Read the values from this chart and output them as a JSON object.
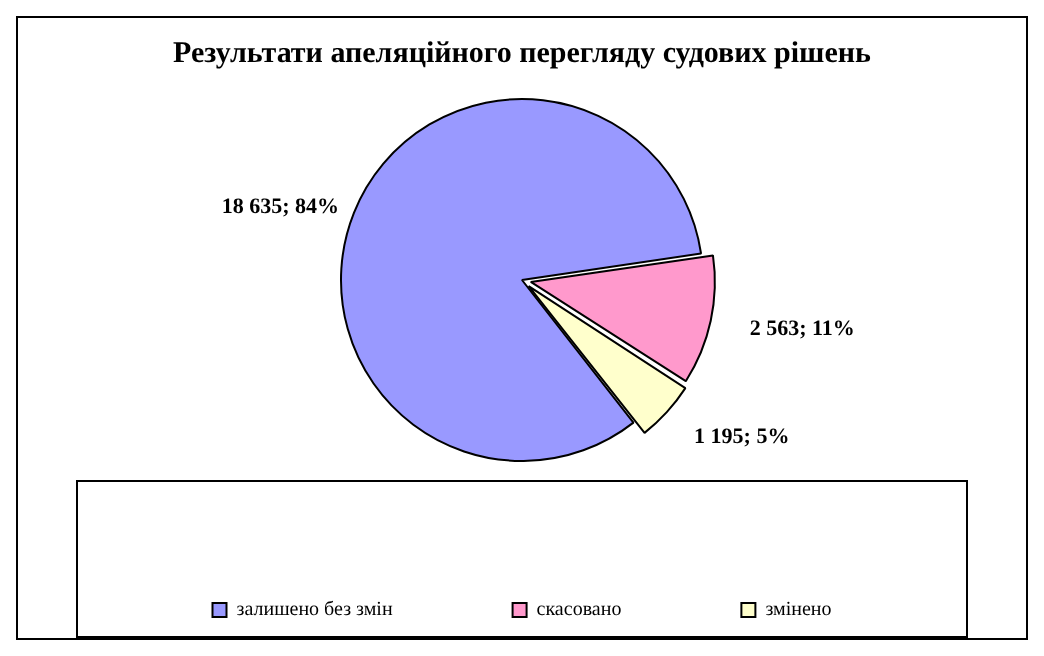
{
  "chart_data": {
    "type": "pie",
    "title": "Результати апеляційного перегляду судових рішень",
    "categories": [
      "залишено без змін",
      "скасовано",
      "змінено"
    ],
    "values": [
      18635,
      2563,
      1195
    ],
    "colors": [
      "#9999ff",
      "#ff99cc",
      "#ffffcc"
    ],
    "value_labels": [
      "18 635; 84%",
      "2 563; 11%",
      "1 195; 5%"
    ],
    "legend": "bottom"
  }
}
